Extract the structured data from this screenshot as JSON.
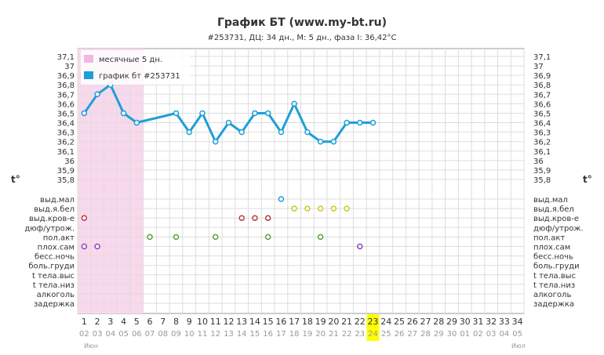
{
  "colors": {
    "line": "#1e9fd8",
    "menses": "#f8d8ec",
    "grid": "#dddddd",
    "highlight": "#ffff00",
    "legend_menses": "#f5b6df"
  },
  "chart_data": {
    "type": "line",
    "title": "График БТ (www.my-bt.ru)",
    "subtitle": "#253731, ДЦ: 34 дн., М: 5 дн., фаза I: 36,42°C",
    "y_unit_label": "t°",
    "legend": {
      "placement": "top-left",
      "menses_label": "месячные 5 дн.",
      "series_label": "график бт #253731"
    },
    "ylim": [
      35.8,
      37.1
    ],
    "y_ticks": [
      "37,1",
      "37",
      "36,9",
      "36,8",
      "36,7",
      "36,6",
      "36,5",
      "36,4",
      "36,3",
      "36,2",
      "36,1",
      "36",
      "35,9",
      "35,8"
    ],
    "x_days": [
      "1",
      "2",
      "3",
      "4",
      "5",
      "6",
      "7",
      "8",
      "9",
      "10",
      "11",
      "12",
      "13",
      "14",
      "15",
      "16",
      "17",
      "18",
      "19",
      "20",
      "21",
      "22",
      "23",
      "24",
      "25",
      "26",
      "27",
      "28",
      "29",
      "30",
      "31",
      "32",
      "33",
      "34"
    ],
    "x_dates": [
      "02",
      "03",
      "04",
      "05",
      "06",
      "07",
      "08",
      "09",
      "10",
      "11",
      "12",
      "13",
      "14",
      "15",
      "16",
      "17",
      "18",
      "19",
      "20",
      "21",
      "22",
      "23",
      "24",
      "25",
      "26",
      "27",
      "28",
      "29",
      "30",
      "01",
      "02",
      "03",
      "04",
      "05"
    ],
    "highlight_day": 23,
    "month_start": "Июн",
    "month_end": "Июл",
    "menses_days": [
      1,
      5
    ],
    "temperature": [
      [
        1,
        36.5
      ],
      [
        2,
        36.7
      ],
      [
        3,
        36.8
      ],
      [
        4,
        36.5
      ],
      [
        5,
        36.4
      ],
      [
        8,
        36.5
      ],
      [
        9,
        36.3
      ],
      [
        10,
        36.5
      ],
      [
        11,
        36.2
      ],
      [
        12,
        36.4
      ],
      [
        13,
        36.3
      ],
      [
        14,
        36.5
      ],
      [
        15,
        36.5
      ],
      [
        16,
        36.3
      ],
      [
        17,
        36.6
      ],
      [
        18,
        36.3
      ],
      [
        19,
        36.2
      ],
      [
        20,
        36.2
      ],
      [
        21,
        36.4
      ],
      [
        22,
        36.4
      ],
      [
        23,
        36.4
      ]
    ],
    "categories": [
      "выд.мал",
      "выд.я.бел",
      "выд.кров-е",
      "дюф/утрож.",
      "пол.акт",
      "плох.сам",
      "бесс.ночь",
      "боль.груди",
      "t тела.выс",
      "t тела.низ",
      "алкоголь",
      "задержка"
    ],
    "markers": [
      {
        "category": 0,
        "color": "#1e9fd8",
        "days": [
          16
        ]
      },
      {
        "category": 1,
        "color": "#c8c820",
        "days": [
          17,
          18,
          19,
          20,
          21
        ]
      },
      {
        "category": 2,
        "color": "#b04040",
        "days": [
          1,
          13,
          14,
          15
        ]
      },
      {
        "category": 4,
        "color": "#5aa040",
        "days": [
          6,
          8,
          11,
          15,
          19
        ]
      },
      {
        "category": 5,
        "color": "#9040c0",
        "days": [
          1,
          2,
          22
        ]
      }
    ]
  }
}
